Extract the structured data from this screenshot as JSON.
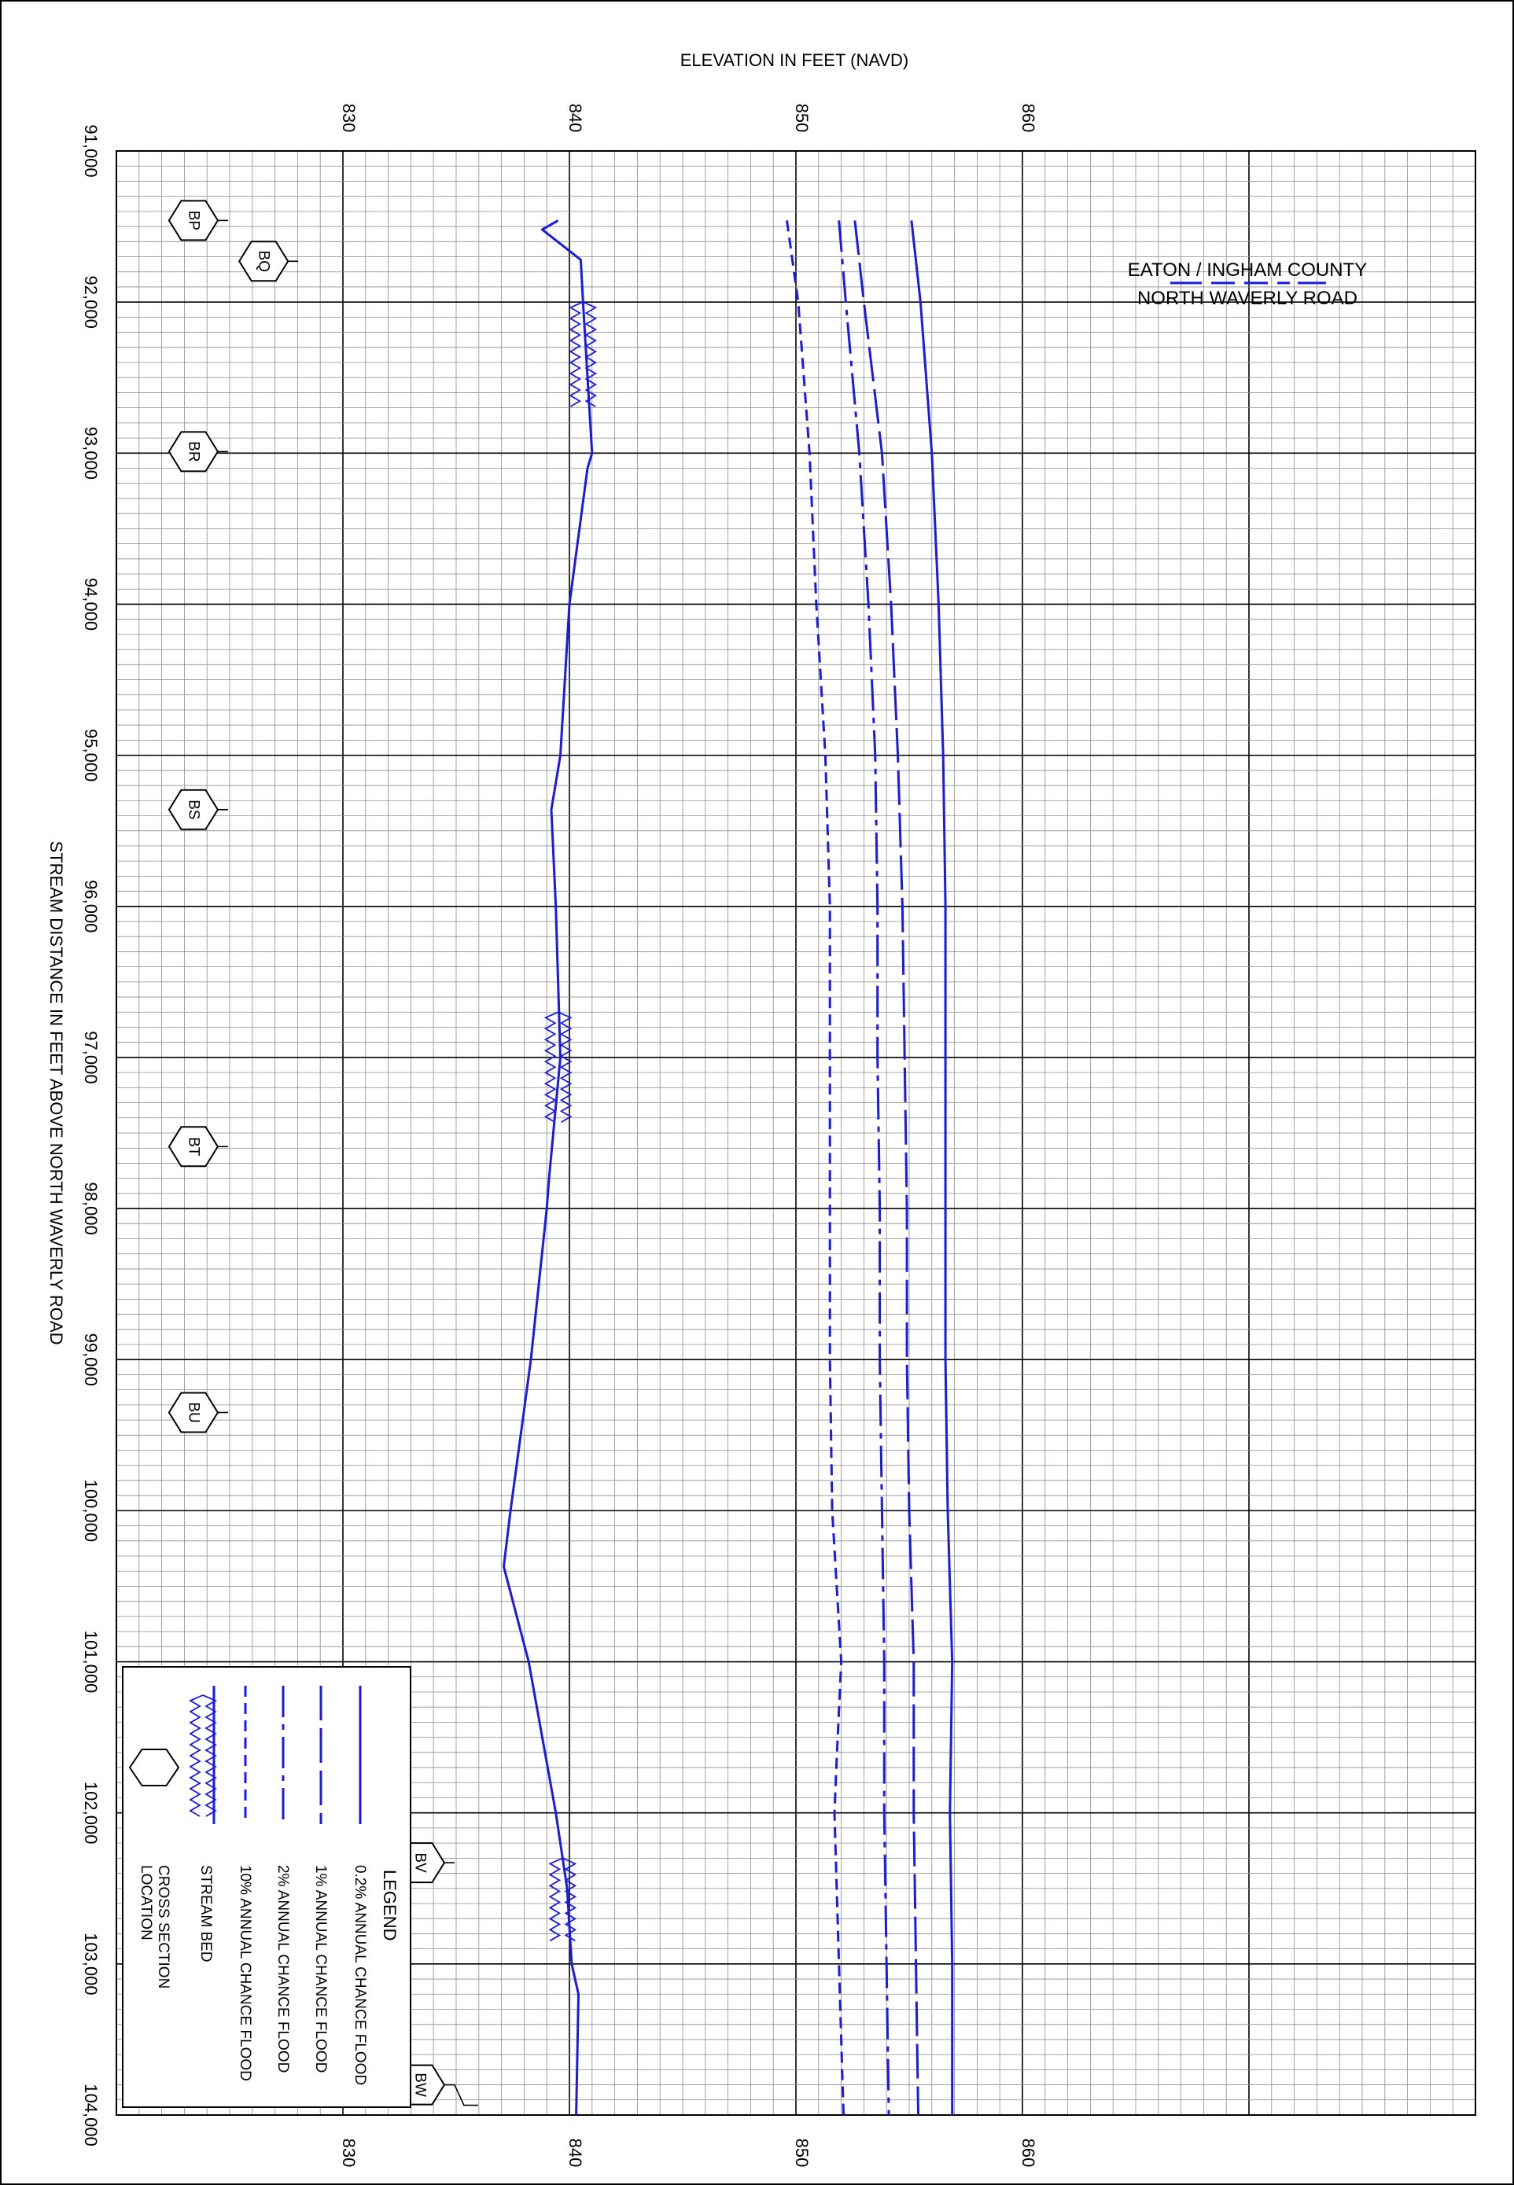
{
  "chart_data": {
    "type": "line",
    "orientation": "rotated",
    "title": "",
    "xlabel": "STREAM DISTANCE IN FEET ABOVE NORTH WAVERLY ROAD",
    "ylabel": "ELEVATION IN FEET (NAVD)",
    "x_range": [
      91000,
      104000
    ],
    "y_range": [
      820,
      880
    ],
    "x_ticks": [
      {
        "value": 91000,
        "label": "91,000"
      },
      {
        "value": 92000,
        "label": "92,000"
      },
      {
        "value": 93000,
        "label": "93,000"
      },
      {
        "value": 94000,
        "label": "94,000"
      },
      {
        "value": 95000,
        "label": "95,000"
      },
      {
        "value": 96000,
        "label": "96,000"
      },
      {
        "value": 97000,
        "label": "97,000"
      },
      {
        "value": 98000,
        "label": "98,000"
      },
      {
        "value": 99000,
        "label": "99,000"
      },
      {
        "value": 100000,
        "label": "100,000"
      },
      {
        "value": 101000,
        "label": "101,000"
      },
      {
        "value": 102000,
        "label": "102,000"
      },
      {
        "value": 103000,
        "label": "103,000"
      },
      {
        "value": 104000,
        "label": "104,000"
      }
    ],
    "y_ticks_top": [
      {
        "value": 830,
        "label": "830"
      },
      {
        "value": 840,
        "label": "840"
      },
      {
        "value": 850,
        "label": "850"
      },
      {
        "value": 860,
        "label": "860"
      }
    ],
    "y_ticks_bottom": [
      {
        "value": 830,
        "label": "830"
      },
      {
        "value": 840,
        "label": "840"
      },
      {
        "value": 850,
        "label": "850"
      },
      {
        "value": 860,
        "label": "860"
      }
    ],
    "series": [
      {
        "name": "0.2% ANNUAL CHANCE FLOOD",
        "style": "solid",
        "points": [
          [
            91460,
            855.1
          ],
          [
            92000,
            855.5
          ],
          [
            93000,
            856.0
          ],
          [
            94000,
            856.3
          ],
          [
            95000,
            856.5
          ],
          [
            96000,
            856.6
          ],
          [
            97000,
            856.6
          ],
          [
            98000,
            856.6
          ],
          [
            99000,
            856.6
          ],
          [
            100000,
            856.7
          ],
          [
            101000,
            856.9
          ],
          [
            102000,
            856.8
          ],
          [
            103000,
            856.9
          ],
          [
            104000,
            856.9
          ]
        ]
      },
      {
        "name": "1% ANNUAL CHANCE FLOOD",
        "style": "longdash",
        "points": [
          [
            91460,
            852.6
          ],
          [
            92000,
            853.0
          ],
          [
            93000,
            853.8
          ],
          [
            94000,
            854.2
          ],
          [
            95000,
            854.5
          ],
          [
            96000,
            854.7
          ],
          [
            97000,
            854.8
          ],
          [
            98000,
            854.9
          ],
          [
            99000,
            854.9
          ],
          [
            100000,
            855.0
          ],
          [
            101000,
            855.2
          ],
          [
            102000,
            855.2
          ],
          [
            103000,
            855.3
          ],
          [
            104000,
            855.4
          ]
        ]
      },
      {
        "name": "2% ANNUAL CHANCE FLOOD",
        "style": "dashdot",
        "points": [
          [
            91460,
            851.9
          ],
          [
            92000,
            852.2
          ],
          [
            93000,
            852.8
          ],
          [
            94000,
            853.2
          ],
          [
            95000,
            853.5
          ],
          [
            96000,
            853.6
          ],
          [
            97000,
            853.6
          ],
          [
            98000,
            853.7
          ],
          [
            99000,
            853.7
          ],
          [
            100000,
            853.8
          ],
          [
            101000,
            853.9
          ],
          [
            102000,
            853.9
          ],
          [
            103000,
            854.0
          ],
          [
            104000,
            854.1
          ]
        ]
      },
      {
        "name": "10% ANNUAL CHANCE FLOOD",
        "style": "shortdash",
        "points": [
          [
            91460,
            849.6
          ],
          [
            92000,
            850.1
          ],
          [
            93000,
            850.6
          ],
          [
            94000,
            850.9
          ],
          [
            95000,
            851.3
          ],
          [
            96000,
            851.5
          ],
          [
            97000,
            851.5
          ],
          [
            98000,
            851.5
          ],
          [
            99000,
            851.5
          ],
          [
            100000,
            851.6
          ],
          [
            101000,
            852.0
          ],
          [
            101650,
            851.8
          ],
          [
            102000,
            851.7
          ],
          [
            103000,
            851.9
          ],
          [
            104000,
            852.1
          ]
        ]
      },
      {
        "name": "STREAM BED",
        "style": "solid",
        "points": [
          [
            91460,
            839.5
          ],
          [
            91520,
            838.8
          ],
          [
            91720,
            840.5
          ],
          [
            92000,
            840.6
          ],
          [
            93000,
            841.0
          ],
          [
            93100,
            840.8
          ],
          [
            94000,
            840.0
          ],
          [
            95000,
            839.6
          ],
          [
            95360,
            839.2
          ],
          [
            96000,
            839.4
          ],
          [
            97000,
            839.6
          ],
          [
            97800,
            839.1
          ],
          [
            98000,
            839.0
          ],
          [
            99000,
            838.3
          ],
          [
            100000,
            837.4
          ],
          [
            100370,
            837.1
          ],
          [
            101000,
            838.2
          ],
          [
            102000,
            839.4
          ],
          [
            102500,
            839.9
          ],
          [
            103000,
            840.1
          ],
          [
            103200,
            840.4
          ],
          [
            104000,
            840.3
          ]
        ]
      }
    ],
    "culverts": [
      {
        "x_start": 92000,
        "x_end": 92700,
        "y": 840.6
      },
      {
        "x_start": 96700,
        "x_end": 97450,
        "y": 839.5
      },
      {
        "x_start": 102300,
        "x_end": 102850,
        "y": 839.7
      }
    ],
    "cross_sections": [
      {
        "label": "BP",
        "x": 91460,
        "y": 823.4
      },
      {
        "label": "BQ",
        "x": 91730,
        "y": 826.5
      },
      {
        "label": "BR",
        "x": 92990,
        "y": 823.4
      },
      {
        "label": "BS",
        "x": 95360,
        "y": 823.4
      },
      {
        "label": "BT",
        "x": 97590,
        "y": 823.4
      },
      {
        "label": "BU",
        "x": 99350,
        "y": 823.4
      },
      {
        "label": "BV",
        "x": 102330,
        "y": 833.4
      },
      {
        "label": "BW",
        "x": 103800,
        "y": 833.4
      }
    ],
    "annotation": {
      "line1": "EATON / INGHAM COUNTY",
      "line2": "NORTH WAVERLY ROAD",
      "x": 91400
    },
    "legend": {
      "title": "LEGEND",
      "placement": "bottom-left",
      "items": [
        {
          "label": "0.2% ANNUAL CHANCE FLOOD",
          "style": "solid"
        },
        {
          "label": "1% ANNUAL CHANCE FLOOD",
          "style": "longdash"
        },
        {
          "label": "2% ANNUAL CHANCE FLOOD",
          "style": "dashdot"
        },
        {
          "label": "10% ANNUAL CHANCE FLOOD",
          "style": "shortdash"
        },
        {
          "label": "STREAM BED",
          "style": "culvert"
        },
        {
          "label": "CROSS SECTION LOCATION",
          "label_line1": "CROSS SECTION",
          "label_line2": "LOCATION",
          "style": "hexagon"
        }
      ]
    },
    "grid": true,
    "colors": {
      "line": "#1a1ae6",
      "grid_minor": "#8c8c8c",
      "grid_major": "#000000"
    }
  }
}
